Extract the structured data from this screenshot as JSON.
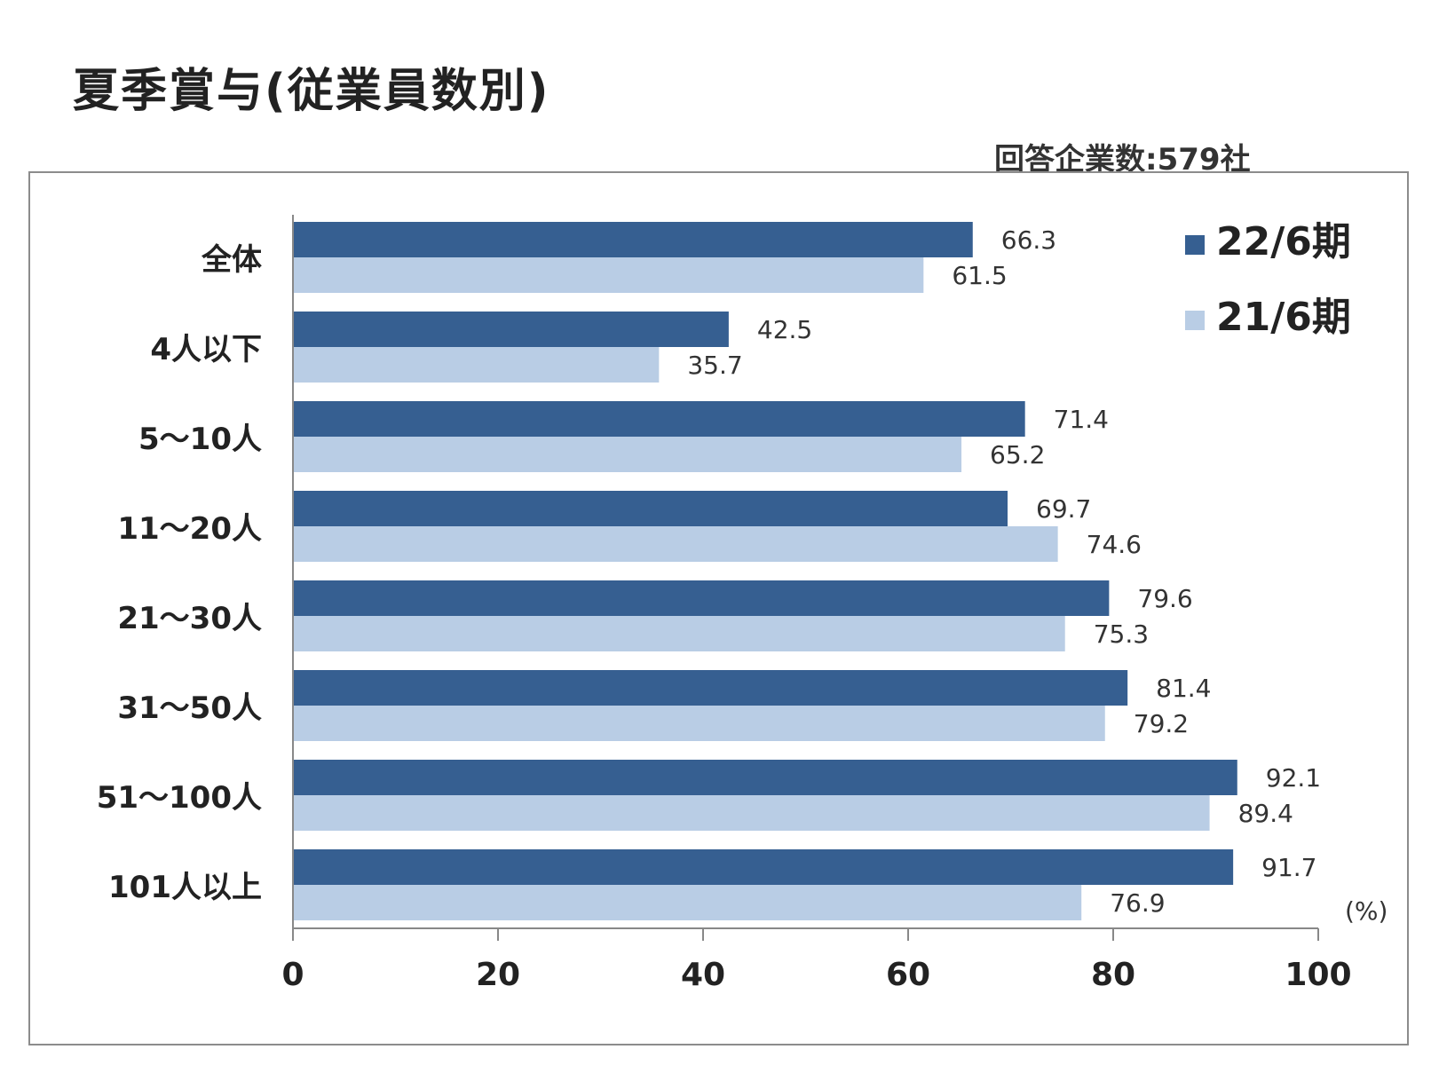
{
  "title": "夏季賞与(従業員数別)",
  "respondents": "回答企業数:579社",
  "chart_data": {
    "type": "bar",
    "orientation": "horizontal",
    "categories": [
      "全体",
      "4人以下",
      "5～10人",
      "11～20人",
      "21～30人",
      "31～50人",
      "51～100人",
      "101人以上"
    ],
    "series": [
      {
        "name": "22/6期",
        "color": "#365f91",
        "values": [
          66.3,
          42.5,
          71.4,
          69.7,
          79.6,
          81.4,
          92.1,
          91.7
        ]
      },
      {
        "name": "21/6期",
        "color": "#b9cde5",
        "values": [
          61.5,
          35.7,
          65.2,
          74.6,
          75.3,
          79.2,
          89.4,
          76.9
        ]
      }
    ],
    "value_labels": [
      [
        "66.3",
        "42.5",
        "71.4",
        "69.7",
        "79.6",
        "81.4",
        "92.1",
        "91.7"
      ],
      [
        "61.5",
        "35.7",
        "65.2",
        "74.6",
        "75.3",
        "79.2",
        "89.4",
        "76.9"
      ]
    ],
    "xlim": [
      0,
      100
    ],
    "xticks": [
      "0",
      "20",
      "40",
      "60",
      "80",
      "100"
    ],
    "xunit": "(%)",
    "legend_position": "top-right",
    "grid": false
  }
}
